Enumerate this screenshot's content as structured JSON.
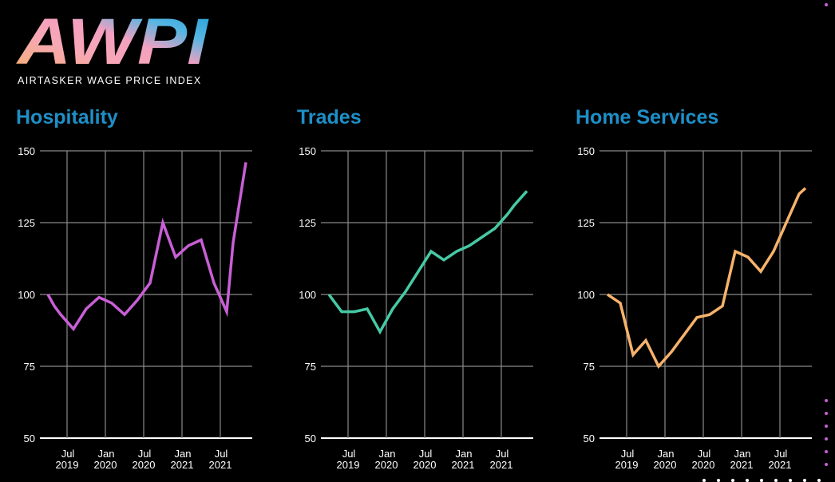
{
  "logo": {
    "wordmark": "AWPI",
    "subtitle": "AIRTASKER WAGE PRICE INDEX"
  },
  "colors": {
    "background": "#000000",
    "title": "#1e8fc7",
    "hospitality": "#c85fd6",
    "trades": "#46c9a4",
    "home_services": "#f6b26b",
    "grid": "#8a8a8a",
    "dot_accent": "#c85fd6"
  },
  "chart_data": [
    {
      "type": "line",
      "title": "Hospitality",
      "y_ticks": [
        150,
        125,
        100,
        75,
        50
      ],
      "ylim": [
        50,
        150
      ],
      "x_ticks": [
        {
          "m": "Jul",
          "y": "2019"
        },
        {
          "m": "Jan",
          "y": "2020"
        },
        {
          "m": "Jul",
          "y": "2020"
        },
        {
          "m": "Jan",
          "y": "2021"
        },
        {
          "m": "Jul",
          "y": "2021"
        }
      ],
      "grid": true,
      "series": [
        {
          "color": "#c85fd6",
          "x": [
            "2019-04",
            "2019-05",
            "2019-06",
            "2019-08",
            "2019-10",
            "2019-12",
            "2020-02",
            "2020-04",
            "2020-06",
            "2020-08",
            "2020-10",
            "2020-12",
            "2021-02",
            "2021-04",
            "2021-06",
            "2021-08",
            "2021-09",
            "2021-10",
            "2021-11"
          ],
          "values": [
            100,
            96,
            93,
            88,
            95,
            99,
            97,
            93,
            98,
            104,
            125,
            113,
            117,
            119,
            104,
            94,
            118,
            132,
            146
          ]
        }
      ]
    },
    {
      "type": "line",
      "title": "Trades",
      "y_ticks": [
        150,
        125,
        100,
        75,
        50
      ],
      "ylim": [
        50,
        150
      ],
      "x_ticks": [
        {
          "m": "Jul",
          "y": "2019"
        },
        {
          "m": "Jan",
          "y": "2020"
        },
        {
          "m": "Jul",
          "y": "2020"
        },
        {
          "m": "Jan",
          "y": "2021"
        },
        {
          "m": "Jul",
          "y": "2021"
        }
      ],
      "grid": true,
      "series": [
        {
          "color": "#46c9a4",
          "x": [
            "2019-04",
            "2019-06",
            "2019-08",
            "2019-10",
            "2019-12",
            "2020-02",
            "2020-04",
            "2020-06",
            "2020-08",
            "2020-10",
            "2020-12",
            "2021-02",
            "2021-04",
            "2021-06",
            "2021-08",
            "2021-09",
            "2021-11"
          ],
          "values": [
            100,
            94,
            94,
            95,
            87,
            95,
            101,
            108,
            115,
            112,
            115,
            117,
            120,
            123,
            128,
            131,
            136
          ]
        }
      ]
    },
    {
      "type": "line",
      "title": "Home Services",
      "y_ticks": [
        150,
        125,
        100,
        75,
        50
      ],
      "ylim": [
        50,
        150
      ],
      "x_ticks": [
        {
          "m": "Jul",
          "y": "2019"
        },
        {
          "m": "Jan",
          "y": "2020"
        },
        {
          "m": "Jul",
          "y": "2020"
        },
        {
          "m": "Jan",
          "y": "2021"
        },
        {
          "m": "Jul",
          "y": "2021"
        }
      ],
      "grid": true,
      "series": [
        {
          "color": "#f6b26b",
          "x": [
            "2019-04",
            "2019-06",
            "2019-08",
            "2019-10",
            "2019-12",
            "2020-02",
            "2020-04",
            "2020-06",
            "2020-08",
            "2020-10",
            "2020-12",
            "2021-02",
            "2021-04",
            "2021-06",
            "2021-08",
            "2021-10",
            "2021-11"
          ],
          "values": [
            100,
            97,
            79,
            84,
            75,
            80,
            86,
            92,
            93,
            96,
            115,
            113,
            108,
            115,
            125,
            135,
            137
          ]
        }
      ]
    }
  ]
}
